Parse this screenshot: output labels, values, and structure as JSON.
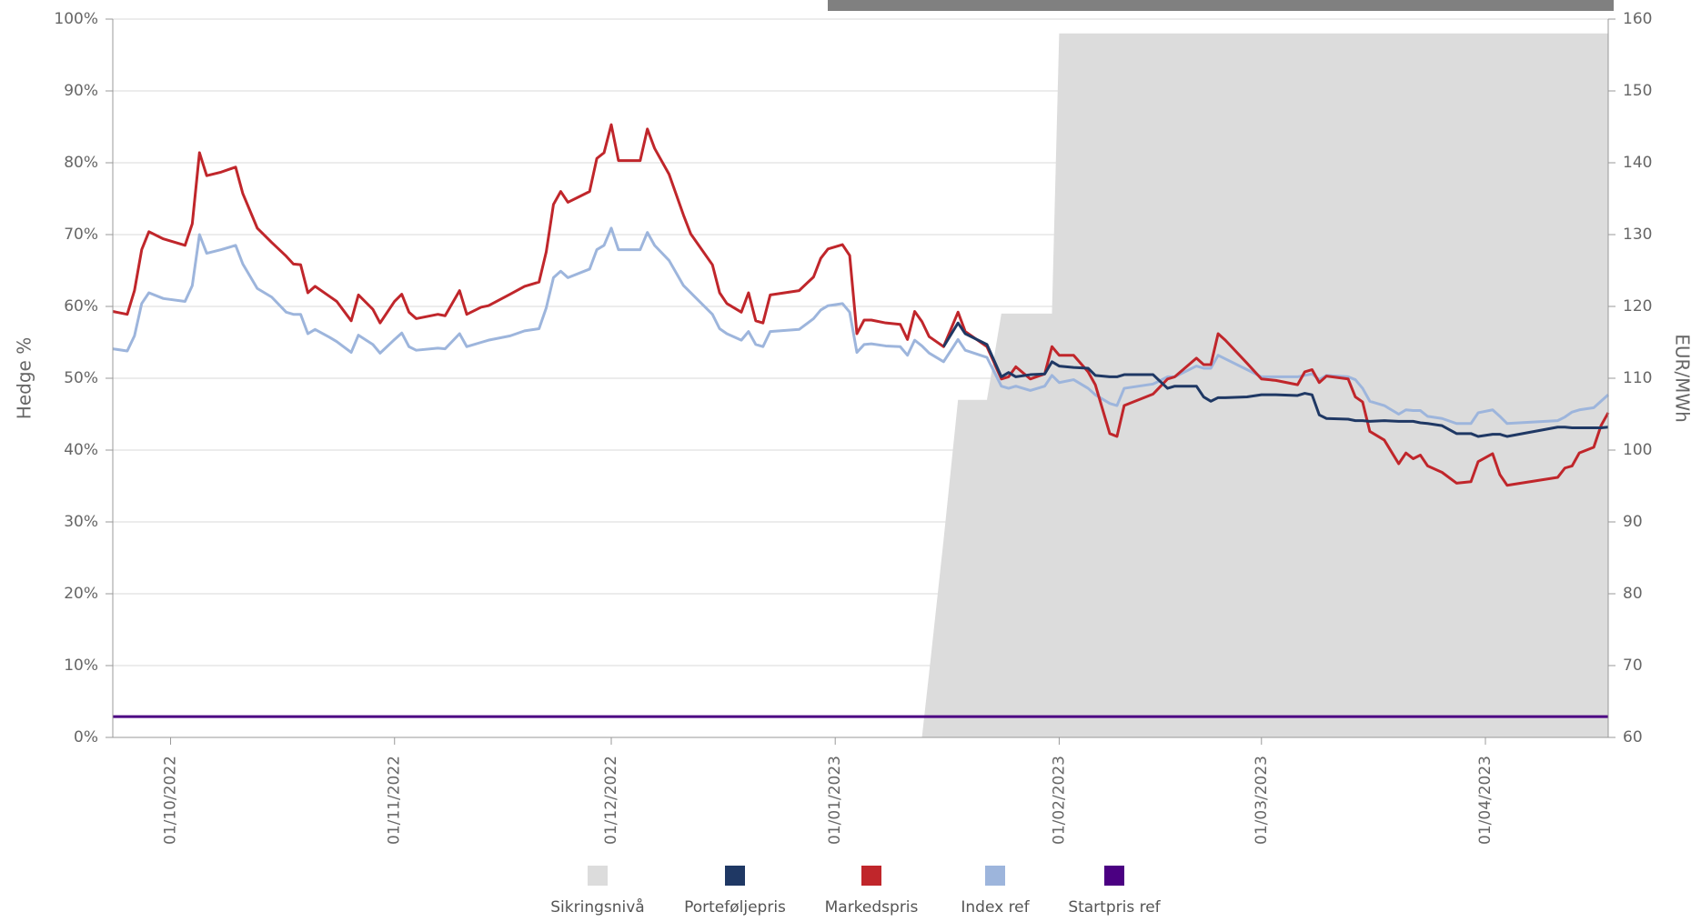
{
  "chart_data": {
    "type": "line",
    "y_label": "Hedge %",
    "y2_label": "EUR/MWh",
    "grid": true,
    "legend": "bottom",
    "xlim": [
      "23/09/2022",
      "18/04/2023"
    ],
    "xticks": [
      "01/10/2022",
      "01/11/2022",
      "01/12/2022",
      "01/01/2023",
      "01/02/2023",
      "01/03/2023",
      "01/04/2023"
    ],
    "ylim": [
      0,
      100
    ],
    "yticks": [
      {
        "value": 0,
        "label": "0%"
      },
      {
        "value": 10,
        "label": "10%"
      },
      {
        "value": 20,
        "label": "20%"
      },
      {
        "value": 30,
        "label": "30%"
      },
      {
        "value": 40,
        "label": "40%"
      },
      {
        "value": 50,
        "label": "50%"
      },
      {
        "value": 60,
        "label": "60%"
      },
      {
        "value": 70,
        "label": "70%"
      },
      {
        "value": 80,
        "label": "80%"
      },
      {
        "value": 90,
        "label": "90%"
      },
      {
        "value": 100,
        "label": "100%"
      }
    ],
    "y2lim": [
      60,
      160
    ],
    "y2ticks": [
      60,
      70,
      80,
      90,
      100,
      110,
      120,
      130,
      140,
      150,
      160
    ],
    "x": [
      "23/09/2022",
      "25/09/2022",
      "26/09/2022",
      "27/09/2022",
      "28/09/2022",
      "30/09/2022",
      "03/10/2022",
      "04/10/2022",
      "05/10/2022",
      "06/10/2022",
      "08/10/2022",
      "10/10/2022",
      "11/10/2022",
      "13/10/2022",
      "15/10/2022",
      "17/10/2022",
      "18/10/2022",
      "19/10/2022",
      "20/10/2022",
      "21/10/2022",
      "23/10/2022",
      "24/10/2022",
      "26/10/2022",
      "27/10/2022",
      "29/10/2022",
      "30/10/2022",
      "01/11/2022",
      "02/11/2022",
      "03/11/2022",
      "04/11/2022",
      "07/11/2022",
      "08/11/2022",
      "10/11/2022",
      "11/11/2022",
      "13/11/2022",
      "14/11/2022",
      "17/11/2022",
      "19/11/2022",
      "21/11/2022",
      "22/11/2022",
      "23/11/2022",
      "24/11/2022",
      "25/11/2022",
      "28/11/2022",
      "29/11/2022",
      "30/11/2022",
      "01/12/2022",
      "02/12/2022",
      "05/12/2022",
      "06/12/2022",
      "07/12/2022",
      "09/12/2022",
      "11/12/2022",
      "12/12/2022",
      "15/12/2022",
      "16/12/2022",
      "17/12/2022",
      "19/12/2022",
      "20/12/2022",
      "21/12/2022",
      "22/12/2022",
      "23/12/2022",
      "27/12/2022",
      "29/12/2022",
      "30/12/2022",
      "31/12/2022",
      "02/01/2023",
      "03/01/2023",
      "04/01/2023",
      "05/01/2023",
      "06/01/2023",
      "08/01/2023",
      "10/01/2023",
      "11/01/2023",
      "12/01/2023",
      "13/01/2023",
      "14/01/2023",
      "16/01/2023",
      "18/01/2023",
      "19/01/2023",
      "22/01/2023",
      "24/01/2023",
      "25/01/2023",
      "26/01/2023",
      "28/01/2023",
      "30/01/2023",
      "31/01/2023",
      "01/02/2023",
      "03/02/2023",
      "05/02/2023",
      "06/02/2023",
      "08/02/2023",
      "09/02/2023",
      "10/02/2023",
      "14/02/2023",
      "16/02/2023",
      "17/02/2023",
      "20/02/2023",
      "21/02/2023",
      "22/02/2023",
      "23/02/2023",
      "24/02/2023",
      "27/02/2023",
      "01/03/2023",
      "03/03/2023",
      "06/03/2023",
      "07/03/2023",
      "08/03/2023",
      "09/03/2023",
      "10/03/2023",
      "13/03/2023",
      "14/03/2023",
      "15/03/2023",
      "16/03/2023",
      "18/03/2023",
      "20/03/2023",
      "21/03/2023",
      "22/03/2023",
      "23/03/2023",
      "24/03/2023",
      "26/03/2023",
      "28/03/2023",
      "30/03/2023",
      "31/03/2023",
      "02/04/2023",
      "03/04/2023",
      "04/04/2023",
      "11/04/2023",
      "12/04/2023",
      "13/04/2023",
      "14/04/2023",
      "16/04/2023",
      "17/04/2023",
      "18/04/2023"
    ],
    "series": [
      {
        "name": "Sikringsnivå",
        "type": "area",
        "color": "#dcdcdc",
        "axis": "y",
        "values": [
          null,
          null,
          null,
          null,
          null,
          null,
          null,
          null,
          null,
          null,
          null,
          null,
          null,
          null,
          null,
          null,
          null,
          null,
          null,
          null,
          null,
          null,
          null,
          null,
          null,
          null,
          null,
          null,
          null,
          null,
          null,
          null,
          null,
          null,
          null,
          null,
          null,
          null,
          null,
          null,
          null,
          null,
          null,
          null,
          null,
          null,
          null,
          null,
          null,
          null,
          null,
          null,
          null,
          null,
          null,
          null,
          null,
          null,
          null,
          null,
          null,
          null,
          null,
          null,
          null,
          null,
          null,
          null,
          null,
          null,
          null,
          null,
          null,
          null,
          null,
          0,
          9,
          27.5,
          47,
          47,
          47,
          59,
          59,
          59,
          59,
          59,
          59,
          98,
          98,
          98,
          98,
          98,
          98,
          98,
          98,
          98,
          98,
          98,
          98,
          98,
          98,
          98,
          98,
          98,
          98,
          98,
          98,
          98,
          98,
          98,
          98,
          98,
          98,
          98,
          98,
          98,
          98,
          98,
          98,
          98,
          98,
          98,
          98,
          98,
          98,
          98,
          98,
          98,
          98,
          98,
          98,
          98,
          98,
          98
        ]
      },
      {
        "name": "Porteføljepris",
        "type": "line",
        "color": "#1f3864",
        "axis": "y2",
        "values": [
          null,
          null,
          null,
          null,
          null,
          null,
          null,
          null,
          null,
          null,
          null,
          null,
          null,
          null,
          null,
          null,
          null,
          null,
          null,
          null,
          null,
          null,
          null,
          null,
          null,
          null,
          null,
          null,
          null,
          null,
          null,
          null,
          null,
          null,
          null,
          null,
          null,
          null,
          null,
          null,
          null,
          null,
          null,
          null,
          null,
          null,
          null,
          null,
          null,
          null,
          null,
          null,
          null,
          null,
          null,
          null,
          null,
          null,
          null,
          null,
          null,
          null,
          null,
          null,
          null,
          null,
          null,
          null,
          null,
          null,
          null,
          null,
          null,
          null,
          null,
          null,
          null,
          114.4,
          117.7,
          116.2,
          114.7,
          110.2,
          110.8,
          110.2,
          110.5,
          110.6,
          112.3,
          111.7,
          111.5,
          111.4,
          110.4,
          110.2,
          110.2,
          110.5,
          110.5,
          108.6,
          108.9,
          108.9,
          107.4,
          106.8,
          107.3,
          107.3,
          107.4,
          107.7,
          107.7,
          107.6,
          107.9,
          107.7,
          104.9,
          104.4,
          104.3,
          104.1,
          104.1,
          104.0,
          104.1,
          104.0,
          104.0,
          104.0,
          103.8,
          103.7,
          103.4,
          102.3,
          102.3,
          101.9,
          102.2,
          102.2,
          101.9,
          103.2,
          103.2,
          103.1,
          103.1,
          103.1,
          103.1,
          103.2
        ]
      },
      {
        "name": "Markedspris",
        "type": "line",
        "color": "#c0262b",
        "axis": "y2",
        "values": [
          119.3,
          118.9,
          122.2,
          127.9,
          130.4,
          129.4,
          128.5,
          131.5,
          141.4,
          138.2,
          138.7,
          139.4,
          135.7,
          130.9,
          128.9,
          127.0,
          125.9,
          125.8,
          121.9,
          122.8,
          121.4,
          120.7,
          118.0,
          121.6,
          119.6,
          117.7,
          120.7,
          121.7,
          119.2,
          118.3,
          118.9,
          118.7,
          122.2,
          118.9,
          119.9,
          120.1,
          121.7,
          122.8,
          123.4,
          127.6,
          134.2,
          136.0,
          134.5,
          136.0,
          140.6,
          141.4,
          145.3,
          140.3,
          140.3,
          144.7,
          142.0,
          138.4,
          132.7,
          130.1,
          125.8,
          121.9,
          120.4,
          119.2,
          121.9,
          118.0,
          117.7,
          121.6,
          122.2,
          124.1,
          126.7,
          128.0,
          128.6,
          127.1,
          116.2,
          118.1,
          118.1,
          117.7,
          117.5,
          115.4,
          119.3,
          117.9,
          115.8,
          114.4,
          119.2,
          116.5,
          114.4,
          109.9,
          110.2,
          111.6,
          109.9,
          110.6,
          114.4,
          113.2,
          113.2,
          110.9,
          109.1,
          102.3,
          101.9,
          106.2,
          107.8,
          109.9,
          110.2,
          112.8,
          111.9,
          111.9,
          116.2,
          115.3,
          112.1,
          109.9,
          109.7,
          109.1,
          110.9,
          111.2,
          109.4,
          110.3,
          109.9,
          107.4,
          106.7,
          102.6,
          101.4,
          98.1,
          99.6,
          98.8,
          99.3,
          97.8,
          96.9,
          95.4,
          95.6,
          98.4,
          99.5,
          96.6,
          95.1,
          96.2,
          97.5,
          97.8,
          99.6,
          100.4,
          103.4,
          105.2
        ]
      },
      {
        "name": "Index ref",
        "type": "line",
        "color": "#9db5dc",
        "axis": "y2",
        "values": [
          114.1,
          113.8,
          115.9,
          120.4,
          121.9,
          121.1,
          120.7,
          122.9,
          130.0,
          127.4,
          127.9,
          128.5,
          125.9,
          122.5,
          121.3,
          119.2,
          118.9,
          118.9,
          116.2,
          116.8,
          115.7,
          115.1,
          113.6,
          116.0,
          114.7,
          113.5,
          115.4,
          116.3,
          114.4,
          113.9,
          114.2,
          114.1,
          116.2,
          114.4,
          115.0,
          115.3,
          115.9,
          116.6,
          116.9,
          119.8,
          124.0,
          124.9,
          124.0,
          125.2,
          127.9,
          128.5,
          130.9,
          127.9,
          127.9,
          130.3,
          128.5,
          126.4,
          122.9,
          121.9,
          118.9,
          116.9,
          116.2,
          115.3,
          116.5,
          114.7,
          114.4,
          116.5,
          116.8,
          118.3,
          119.5,
          120.1,
          120.4,
          119.2,
          113.6,
          114.7,
          114.8,
          114.5,
          114.4,
          113.2,
          115.3,
          114.5,
          113.5,
          112.3,
          115.4,
          113.9,
          112.9,
          108.9,
          108.6,
          108.9,
          108.3,
          108.9,
          110.4,
          109.4,
          109.8,
          108.6,
          107.7,
          106.5,
          106.2,
          108.6,
          109.2,
          110.2,
          110.2,
          111.7,
          111.4,
          111.4,
          113.2,
          112.7,
          111.2,
          110.2,
          110.2,
          110.2,
          110.4,
          110.6,
          109.8,
          110.4,
          110.2,
          109.8,
          108.6,
          106.8,
          106.2,
          105.0,
          105.6,
          105.5,
          105.5,
          104.7,
          104.4,
          103.7,
          103.7,
          105.2,
          105.6,
          104.7,
          103.7,
          104.1,
          104.6,
          105.3,
          105.6,
          105.9,
          106.8,
          107.7
        ]
      },
      {
        "name": "Startpris ref",
        "type": "hline",
        "color": "#4b0082",
        "axis": "y2",
        "value": 62.9
      }
    ]
  }
}
